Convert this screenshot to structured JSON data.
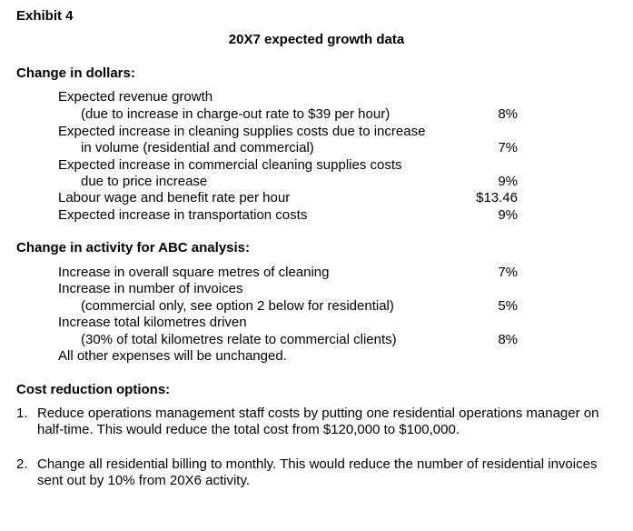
{
  "exhibit_label": "Exhibit 4",
  "title": "20X7 expected growth data",
  "dollars": {
    "heading": "Change in dollars:",
    "lines": [
      "Expected revenue growth",
      "(due to increase in charge-out rate to $39 per hour)",
      "Expected increase in cleaning supplies costs due to increase",
      "in volume (residential and commercial)",
      "Expected increase in commercial cleaning supplies costs",
      "due to price increase",
      "Labour wage and benefit rate per hour",
      "Expected increase in transportation costs"
    ],
    "values": [
      "8%",
      "7%",
      "9%",
      "$13.46",
      "9%"
    ]
  },
  "activity": {
    "heading": "Change in activity for ABC analysis:",
    "lines": [
      "Increase in overall square metres of cleaning",
      "Increase in number of invoices",
      "(commercial only, see option 2 below for residential)",
      "Increase total kilometres driven",
      "(30% of total kilometres relate to commercial clients)",
      "All other expenses will be unchanged."
    ],
    "values": [
      "7%",
      "5%",
      "8%"
    ]
  },
  "cost_reduction": {
    "heading": "Cost reduction options:",
    "options": [
      {
        "number": "1.",
        "text": "Reduce operations management staff costs by putting one residential operations manager on half-time. This would reduce the total cost from $120,000 to $100,000."
      },
      {
        "number": "2.",
        "text": "Change all residential billing to monthly. This would reduce the number of residential invoices sent out by 10% from 20X6 activity."
      }
    ]
  }
}
